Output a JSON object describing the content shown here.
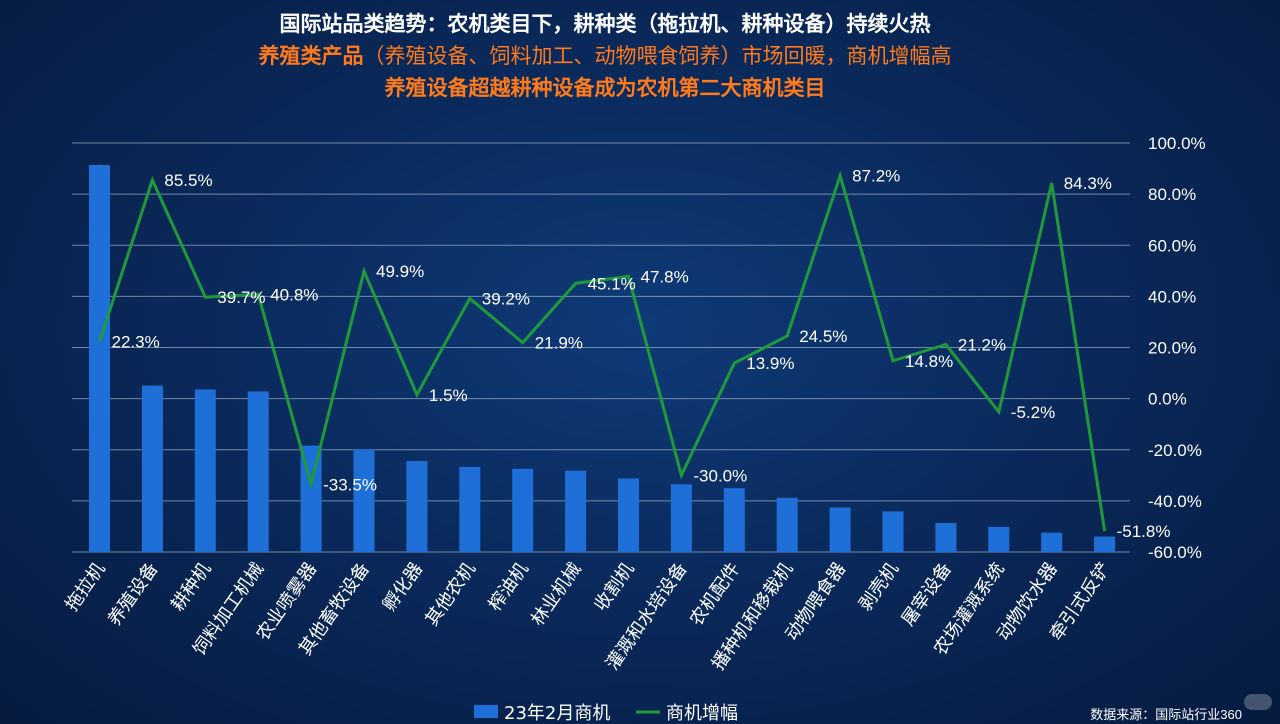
{
  "titles": {
    "line1": "国际站品类趋势：农机类目下，耕种类（拖拉机、耕种设备）持续火热",
    "line2_bold": "养殖类产品",
    "line2_rest": "（养殖设备、饲料加工、动物喂食饲养）市场回暖，商机增幅高",
    "line3": "养殖设备超越耕种设备成为农机第二大商机类目"
  },
  "source": "数据来源：国际站行业360",
  "chart_data": {
    "type": "bar+line",
    "categories": [
      "拖拉机",
      "养殖设备",
      "耕种机",
      "饲料加工机械",
      "农业喷雾器",
      "其他畜牧设备",
      "孵化器",
      "其他农机",
      "榨油机",
      "林业机械",
      "收割机",
      "灌溉和水培设备",
      "农机配件",
      "播种机和移栽机",
      "动物喂食器",
      "剥壳机",
      "屠宰设备",
      "农场灌溉系统",
      "动物饮水器",
      "牵引式反铲"
    ],
    "bar_series": {
      "name": "23年2月商机",
      "color": "#1f6fd8",
      "relative_values": [
        100,
        43,
        42,
        41.5,
        27.5,
        26.5,
        23.5,
        22,
        21.5,
        21,
        19,
        17.5,
        16.5,
        14,
        11.5,
        10.5,
        7.5,
        6.5,
        5,
        4
      ]
    },
    "line_series": {
      "name": "商机增幅",
      "color": "#1f9a3a",
      "unit": "%",
      "values": [
        22.3,
        85.5,
        39.7,
        40.8,
        -33.5,
        49.9,
        1.5,
        39.2,
        21.9,
        45.1,
        47.8,
        -30.0,
        13.9,
        24.5,
        87.2,
        14.8,
        21.2,
        -5.2,
        84.3,
        -51.8
      ],
      "labels": [
        "22.3%",
        "85.5%",
        "39.7%",
        "40.8%",
        "-33.5%",
        "49.9%",
        "1.5%",
        "39.2%",
        "21.9%",
        "45.1%",
        "47.8%",
        "-30.0%",
        "13.9%",
        "24.5%",
        "87.2%",
        "14.8%",
        "21.2%",
        "-5.2%",
        "84.3%",
        "-51.8%"
      ]
    },
    "right_axis": {
      "ylim": [
        -60,
        100
      ],
      "ticks": [
        "100.0%",
        "80.0%",
        "60.0%",
        "40.0%",
        "20.0%",
        "0.0%",
        "-20.0%",
        "-40.0%",
        "-60.0%"
      ]
    },
    "grid": true,
    "legend": {
      "position": "bottom-center",
      "items": [
        "23年2月商机",
        "商机增幅"
      ]
    }
  }
}
